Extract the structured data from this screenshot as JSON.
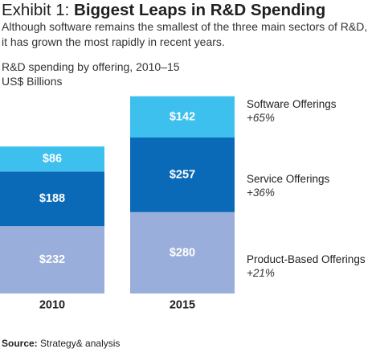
{
  "title": {
    "prefix": "Exhibit 1: ",
    "main": "Biggest Leaps in R&D Spending"
  },
  "subtitle": "Although software remains the smallest of the three main sectors of R&D, it has grown the most rapidly in recent years.",
  "caption": {
    "line1": "R&D spending by offering, 2010–15",
    "line2": "US$ Billions"
  },
  "source": {
    "label": "Source:",
    "text": " Strategy& analysis"
  },
  "chart_data": {
    "type": "bar",
    "stacked": true,
    "categories": [
      "2010",
      "2015"
    ],
    "series": [
      {
        "name": "Product-Based Offerings",
        "values": [
          232,
          280
        ],
        "labels": [
          "$232",
          "$280"
        ],
        "growth": "+21%",
        "color": "#9aaedb"
      },
      {
        "name": "Service Offerings",
        "values": [
          188,
          257
        ],
        "labels": [
          "$188",
          "$257"
        ],
        "growth": "+36%",
        "color": "#0b6ab8"
      },
      {
        "name": "Software Offerings",
        "values": [
          86,
          142
        ],
        "labels": [
          "$86",
          "$142"
        ],
        "growth": "+65%",
        "color": "#3ec0ef"
      }
    ]
  }
}
